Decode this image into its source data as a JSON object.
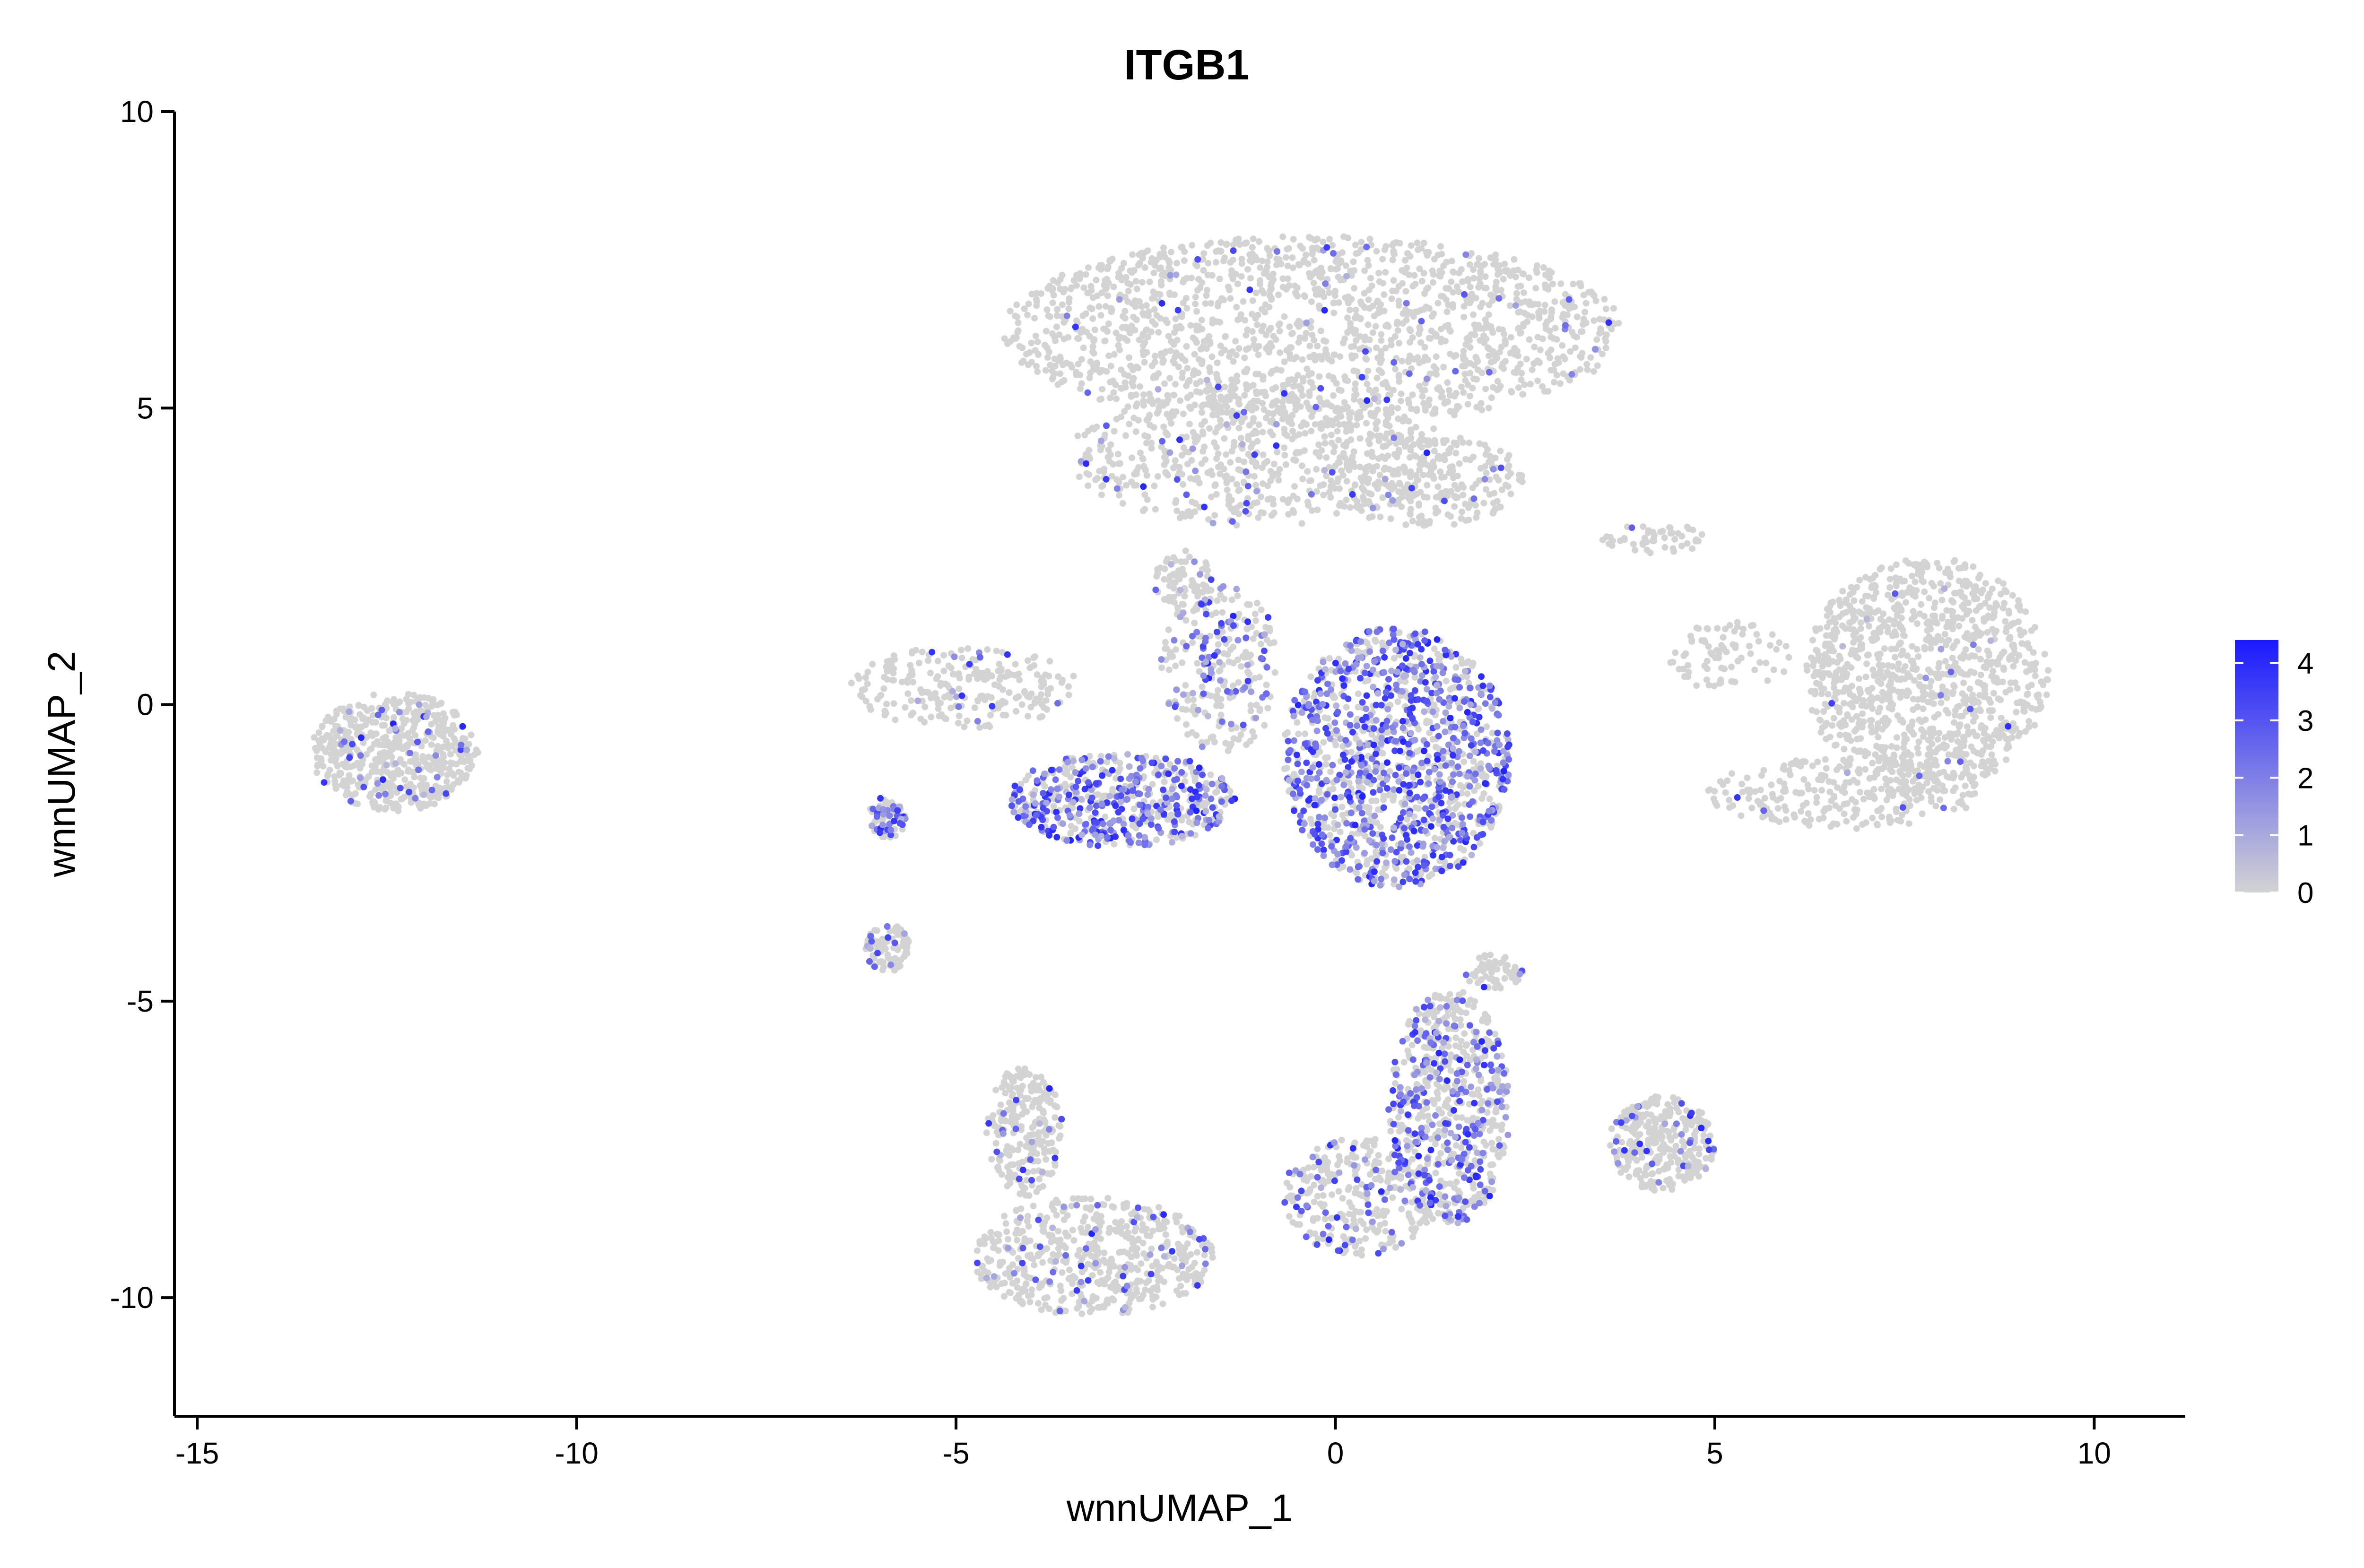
{
  "chart_data": {
    "type": "scatter",
    "title": "ITGB1",
    "xlabel": "wnnUMAP_1",
    "ylabel": "wnnUMAP_2",
    "xlim": [
      -15.3,
      11.2
    ],
    "ylim": [
      -12.0,
      10.0
    ],
    "xticks": [
      {
        "value": -15,
        "label": "-15"
      },
      {
        "value": -10,
        "label": "-10"
      },
      {
        "value": -5,
        "label": "-5"
      },
      {
        "value": 0,
        "label": "0"
      },
      {
        "value": 5,
        "label": "5"
      },
      {
        "value": 10,
        "label": "10"
      }
    ],
    "yticks": [
      {
        "value": 10,
        "label": "10"
      },
      {
        "value": 5,
        "label": "5"
      },
      {
        "value": 0,
        "label": "0"
      },
      {
        "value": -5,
        "label": "-5"
      },
      {
        "value": -10,
        "label": "-10"
      }
    ],
    "grid": false,
    "legend": {
      "placement": "right",
      "type": "colorbar",
      "min": 0,
      "max": 4.4,
      "ticks": [
        {
          "value": 0,
          "label": "0"
        },
        {
          "value": 1,
          "label": "1"
        },
        {
          "value": 2,
          "label": "2"
        },
        {
          "value": 3,
          "label": "3"
        },
        {
          "value": 4,
          "label": "4"
        }
      ],
      "low_color": "#d3d3d3",
      "high_color": "#1a1aff"
    },
    "clusters": [
      {
        "cx": -0.3,
        "cy": 6.3,
        "rx": 4.1,
        "ry": 1.6,
        "n": 1600,
        "expr": 0.03
      },
      {
        "cx": -1.0,
        "cy": 4.2,
        "rx": 2.5,
        "ry": 1.2,
        "n": 600,
        "expr": 0.06
      },
      {
        "cx": 1.2,
        "cy": 3.8,
        "rx": 1.3,
        "ry": 0.8,
        "n": 260,
        "expr": 0.06
      },
      {
        "cx": 0.8,
        "cy": -0.9,
        "rx": 1.5,
        "ry": 2.2,
        "n": 1300,
        "expr": 0.55
      },
      {
        "cx": -1.5,
        "cy": 0.6,
        "rx": 0.8,
        "ry": 1.4,
        "n": 260,
        "expr": 0.3
      },
      {
        "cx": -2.8,
        "cy": -1.6,
        "rx": 1.5,
        "ry": 0.8,
        "n": 550,
        "expr": 0.55
      },
      {
        "cx": -4.9,
        "cy": 0.3,
        "rx": 1.5,
        "ry": 0.7,
        "n": 240,
        "expr": 0.06
      },
      {
        "cx": -2.0,
        "cy": 2.0,
        "rx": 0.4,
        "ry": 0.6,
        "n": 70,
        "expr": 0.1
      },
      {
        "cx": -5.9,
        "cy": -1.9,
        "rx": 0.25,
        "ry": 0.35,
        "n": 70,
        "expr": 0.5
      },
      {
        "cx": -5.9,
        "cy": -4.1,
        "rx": 0.3,
        "ry": 0.4,
        "n": 90,
        "expr": 0.12
      },
      {
        "cx": 1.5,
        "cy": -6.8,
        "rx": 0.8,
        "ry": 2.0,
        "n": 650,
        "expr": 0.35
      },
      {
        "cx": 0.3,
        "cy": -8.3,
        "rx": 1.0,
        "ry": 1.0,
        "n": 300,
        "expr": 0.22
      },
      {
        "cx": -3.2,
        "cy": -9.3,
        "rx": 1.6,
        "ry": 1.0,
        "n": 550,
        "expr": 0.1
      },
      {
        "cx": -4.1,
        "cy": -7.2,
        "rx": 0.5,
        "ry": 1.1,
        "n": 240,
        "expr": 0.1
      },
      {
        "cx": 2.1,
        "cy": -4.5,
        "rx": 0.4,
        "ry": 0.3,
        "n": 60,
        "expr": 0.05
      },
      {
        "cx": 4.3,
        "cy": -7.4,
        "rx": 0.7,
        "ry": 0.8,
        "n": 300,
        "expr": 0.1
      },
      {
        "cx": 7.8,
        "cy": 0.5,
        "rx": 1.6,
        "ry": 2.0,
        "n": 1100,
        "expr": 0.02
      },
      {
        "cx": 6.7,
        "cy": -1.5,
        "rx": 1.8,
        "ry": 0.6,
        "n": 250,
        "expr": 0.02
      },
      {
        "cx": 5.2,
        "cy": 0.8,
        "rx": 0.8,
        "ry": 0.6,
        "n": 80,
        "expr": 0.02
      },
      {
        "cx": 4.2,
        "cy": 2.8,
        "rx": 0.7,
        "ry": 0.25,
        "n": 50,
        "expr": 0.02
      },
      {
        "cx": -12.4,
        "cy": -0.8,
        "rx": 1.1,
        "ry": 1.0,
        "n": 600,
        "expr": 0.08
      }
    ]
  }
}
